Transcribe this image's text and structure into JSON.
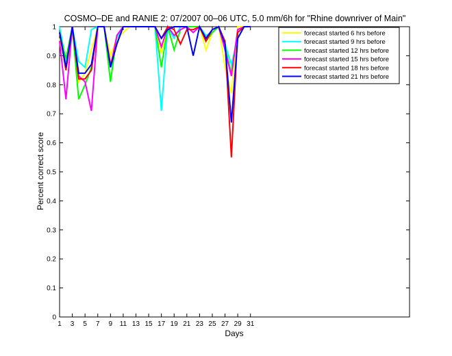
{
  "chart_data": {
    "type": "line",
    "title": "COSMO–DE and RANIE 2: 07/2007 00–06 UTC, 5.0 mm/6h for \"Rhine downriver of Main\"",
    "xlabel": "Days",
    "ylabel": "Percent correct score",
    "xlim": [
      1,
      56
    ],
    "ylim": [
      0,
      1
    ],
    "xticks": [
      1,
      3,
      5,
      7,
      9,
      11,
      13,
      15,
      17,
      19,
      21,
      23,
      25,
      27,
      29,
      31
    ],
    "yticks": [
      0,
      0.1,
      0.2,
      0.3,
      0.4,
      0.5,
      0.6,
      0.7,
      0.8,
      0.9,
      1
    ],
    "ytick_labels": [
      "0",
      "0.1",
      "0.2",
      "0.3",
      "0.4",
      "0.5",
      "0.6",
      "0.7",
      "0.8",
      "0.9",
      "1"
    ],
    "grid": false,
    "legend_position": "top-right",
    "x": [
      1,
      2,
      3,
      4,
      5,
      6,
      7,
      8,
      9,
      10,
      11,
      12,
      13,
      14,
      15,
      16,
      17,
      18,
      19,
      20,
      21,
      22,
      23,
      24,
      25,
      26,
      27,
      28,
      29,
      30,
      31
    ],
    "series": [
      {
        "name": "forecast started 6 hrs before",
        "color": "#ffff00",
        "values": [
          0.96,
          0.88,
          1.0,
          0.81,
          0.84,
          0.92,
          1.0,
          1.0,
          0.9,
          0.96,
          0.98,
          1.0,
          1.0,
          1.0,
          1.0,
          1.0,
          0.91,
          0.99,
          1.0,
          1.0,
          1.0,
          1.0,
          1.0,
          0.92,
          0.98,
          1.0,
          0.86,
          0.77,
          1.0,
          1.0,
          1.0
        ]
      },
      {
        "name": "forecast started 9 hrs before",
        "color": "#00ffff",
        "values": [
          1.0,
          0.88,
          1.0,
          0.88,
          0.86,
          0.99,
          1.0,
          1.0,
          0.86,
          0.96,
          1.0,
          1.0,
          1.0,
          1.0,
          1.0,
          1.0,
          0.71,
          1.0,
          0.96,
          1.0,
          1.0,
          1.0,
          1.0,
          0.97,
          0.98,
          1.0,
          0.94,
          0.87,
          0.96,
          1.0,
          1.0
        ]
      },
      {
        "name": "forecast started 12 hrs before",
        "color": "#00ff00",
        "values": [
          0.98,
          0.89,
          1.0,
          0.75,
          0.8,
          0.86,
          1.0,
          1.0,
          0.81,
          0.97,
          1.0,
          1.0,
          1.0,
          1.0,
          1.0,
          1.0,
          0.86,
          1.0,
          0.92,
          0.99,
          1.0,
          1.0,
          1.0,
          0.95,
          0.98,
          1.0,
          0.93,
          0.84,
          0.99,
          1.0,
          1.0
        ]
      },
      {
        "name": "forecast started 15 hrs before",
        "color": "#ff00ff",
        "values": [
          0.95,
          0.75,
          1.0,
          0.83,
          0.81,
          0.71,
          1.0,
          1.0,
          0.86,
          0.97,
          1.0,
          1.0,
          1.0,
          1.0,
          1.0,
          1.0,
          0.93,
          1.0,
          0.97,
          0.99,
          1.0,
          0.98,
          1.0,
          0.96,
          0.99,
          1.0,
          0.92,
          0.83,
          0.99,
          1.0,
          1.0
        ]
      },
      {
        "name": "forecast started 18 hrs before",
        "color": "#ff0000",
        "values": [
          0.98,
          0.85,
          1.0,
          0.82,
          0.82,
          0.85,
          1.0,
          1.0,
          0.87,
          0.94,
          1.0,
          1.0,
          1.0,
          1.0,
          1.0,
          1.0,
          0.96,
          1.0,
          0.99,
          0.94,
          0.99,
          0.99,
          1.0,
          0.95,
          0.99,
          1.0,
          0.95,
          0.55,
          0.98,
          1.0,
          1.0
        ]
      },
      {
        "name": "forecast started 21 hrs before",
        "color": "#0000ff",
        "values": [
          0.98,
          0.86,
          1.0,
          0.84,
          0.84,
          0.87,
          1.0,
          1.0,
          0.86,
          0.94,
          1.0,
          1.0,
          1.0,
          1.0,
          1.0,
          1.0,
          0.96,
          0.99,
          1.0,
          1.0,
          1.0,
          0.9,
          1.0,
          0.96,
          0.99,
          1.0,
          0.94,
          0.67,
          0.96,
          1.0,
          1.0
        ]
      }
    ]
  }
}
